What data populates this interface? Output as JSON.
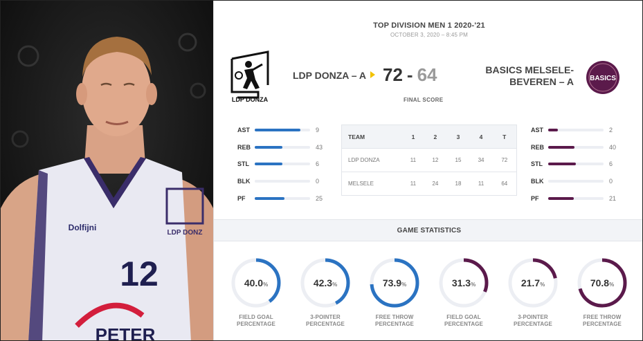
{
  "header": {
    "competition": "TOP DIVISION MEN 1 2020-'21",
    "datetime": "OCTOBER 3, 2020 – 8:45 PM"
  },
  "home": {
    "name": "LDP DONZA – A",
    "score": "72",
    "logo_text": "LDP DONZA",
    "color": "#2b73c2",
    "stats": [
      {
        "label": "AST",
        "value": "9",
        "fill": 0.82
      },
      {
        "label": "REB",
        "value": "43",
        "fill": 0.5
      },
      {
        "label": "STL",
        "value": "6",
        "fill": 0.5
      },
      {
        "label": "BLK",
        "value": "0",
        "fill": 0
      },
      {
        "label": "PF",
        "value": "25",
        "fill": 0.54
      }
    ]
  },
  "away": {
    "name": "BASICS MELSELE-BEVEREN – A",
    "score": "64",
    "logo_text": "BASICS",
    "color": "#5b1a4b",
    "stats": [
      {
        "label": "AST",
        "value": "2",
        "fill": 0.18
      },
      {
        "label": "REB",
        "value": "40",
        "fill": 0.48
      },
      {
        "label": "STL",
        "value": "6",
        "fill": 0.5
      },
      {
        "label": "BLK",
        "value": "0",
        "fill": 0
      },
      {
        "label": "PF",
        "value": "21",
        "fill": 0.46
      }
    ]
  },
  "score_separator": "-",
  "final_label": "FINAL SCORE",
  "quarters": {
    "headers": [
      "TEAM",
      "1",
      "2",
      "3",
      "4",
      "T"
    ],
    "rows": [
      [
        "LDP DONZA",
        "11",
        "12",
        "15",
        "34",
        "72"
      ],
      [
        "MELSELE",
        "11",
        "24",
        "18",
        "11",
        "64"
      ]
    ]
  },
  "game_statistics": {
    "title": "GAME STATISTICS",
    "items": [
      {
        "value": "40.0",
        "fraction": 0.4,
        "line1": "FIELD GOAL",
        "line2": "PERCENTAGE",
        "team": "home"
      },
      {
        "value": "42.3",
        "fraction": 0.423,
        "line1": "3-POINTER",
        "line2": "PERCENTAGE",
        "team": "home"
      },
      {
        "value": "73.9",
        "fraction": 0.739,
        "line1": "FREE THROW",
        "line2": "PERCENTAGE",
        "team": "home"
      },
      {
        "value": "31.3",
        "fraction": 0.313,
        "line1": "FIELD GOAL",
        "line2": "PERCENTAGE",
        "team": "away"
      },
      {
        "value": "21.7",
        "fraction": 0.217,
        "line1": "3-POINTER",
        "line2": "PERCENTAGE",
        "team": "away"
      },
      {
        "value": "70.8",
        "fraction": 0.708,
        "line1": "FREE THROW",
        "line2": "PERCENTAGE",
        "team": "away"
      }
    ],
    "percent_sign": "%"
  },
  "photo": {
    "jersey_number": "12",
    "jersey_sponsor": "PETER",
    "jersey_brand": "Dolfijni"
  }
}
